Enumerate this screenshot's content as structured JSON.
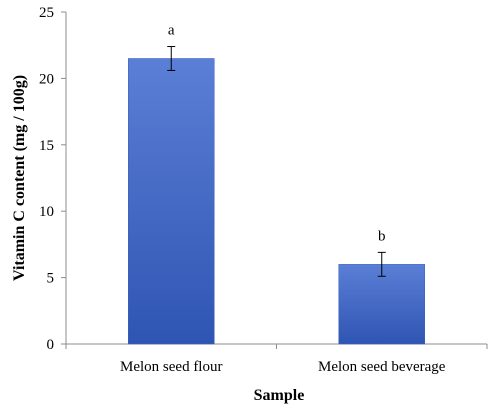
{
  "chart_data": {
    "type": "bar",
    "title": "",
    "xlabel": "Sample",
    "ylabel": "Vitamin C content (mg / 100g)",
    "categories": [
      "Melon seed flour",
      "Melon seed beverage"
    ],
    "values": [
      21.5,
      6.0
    ],
    "error": [
      0.9,
      0.9
    ],
    "annotations": [
      "a",
      "b"
    ],
    "ylim": [
      0,
      25
    ],
    "yticks": [
      "0",
      "5",
      "10",
      "15",
      "20",
      "25"
    ],
    "grid": false,
    "legend": "none",
    "colors": {
      "bar_top": "#5b7fd6",
      "bar_bottom": "#2f55b3",
      "axis": "#8c8c8c"
    }
  }
}
